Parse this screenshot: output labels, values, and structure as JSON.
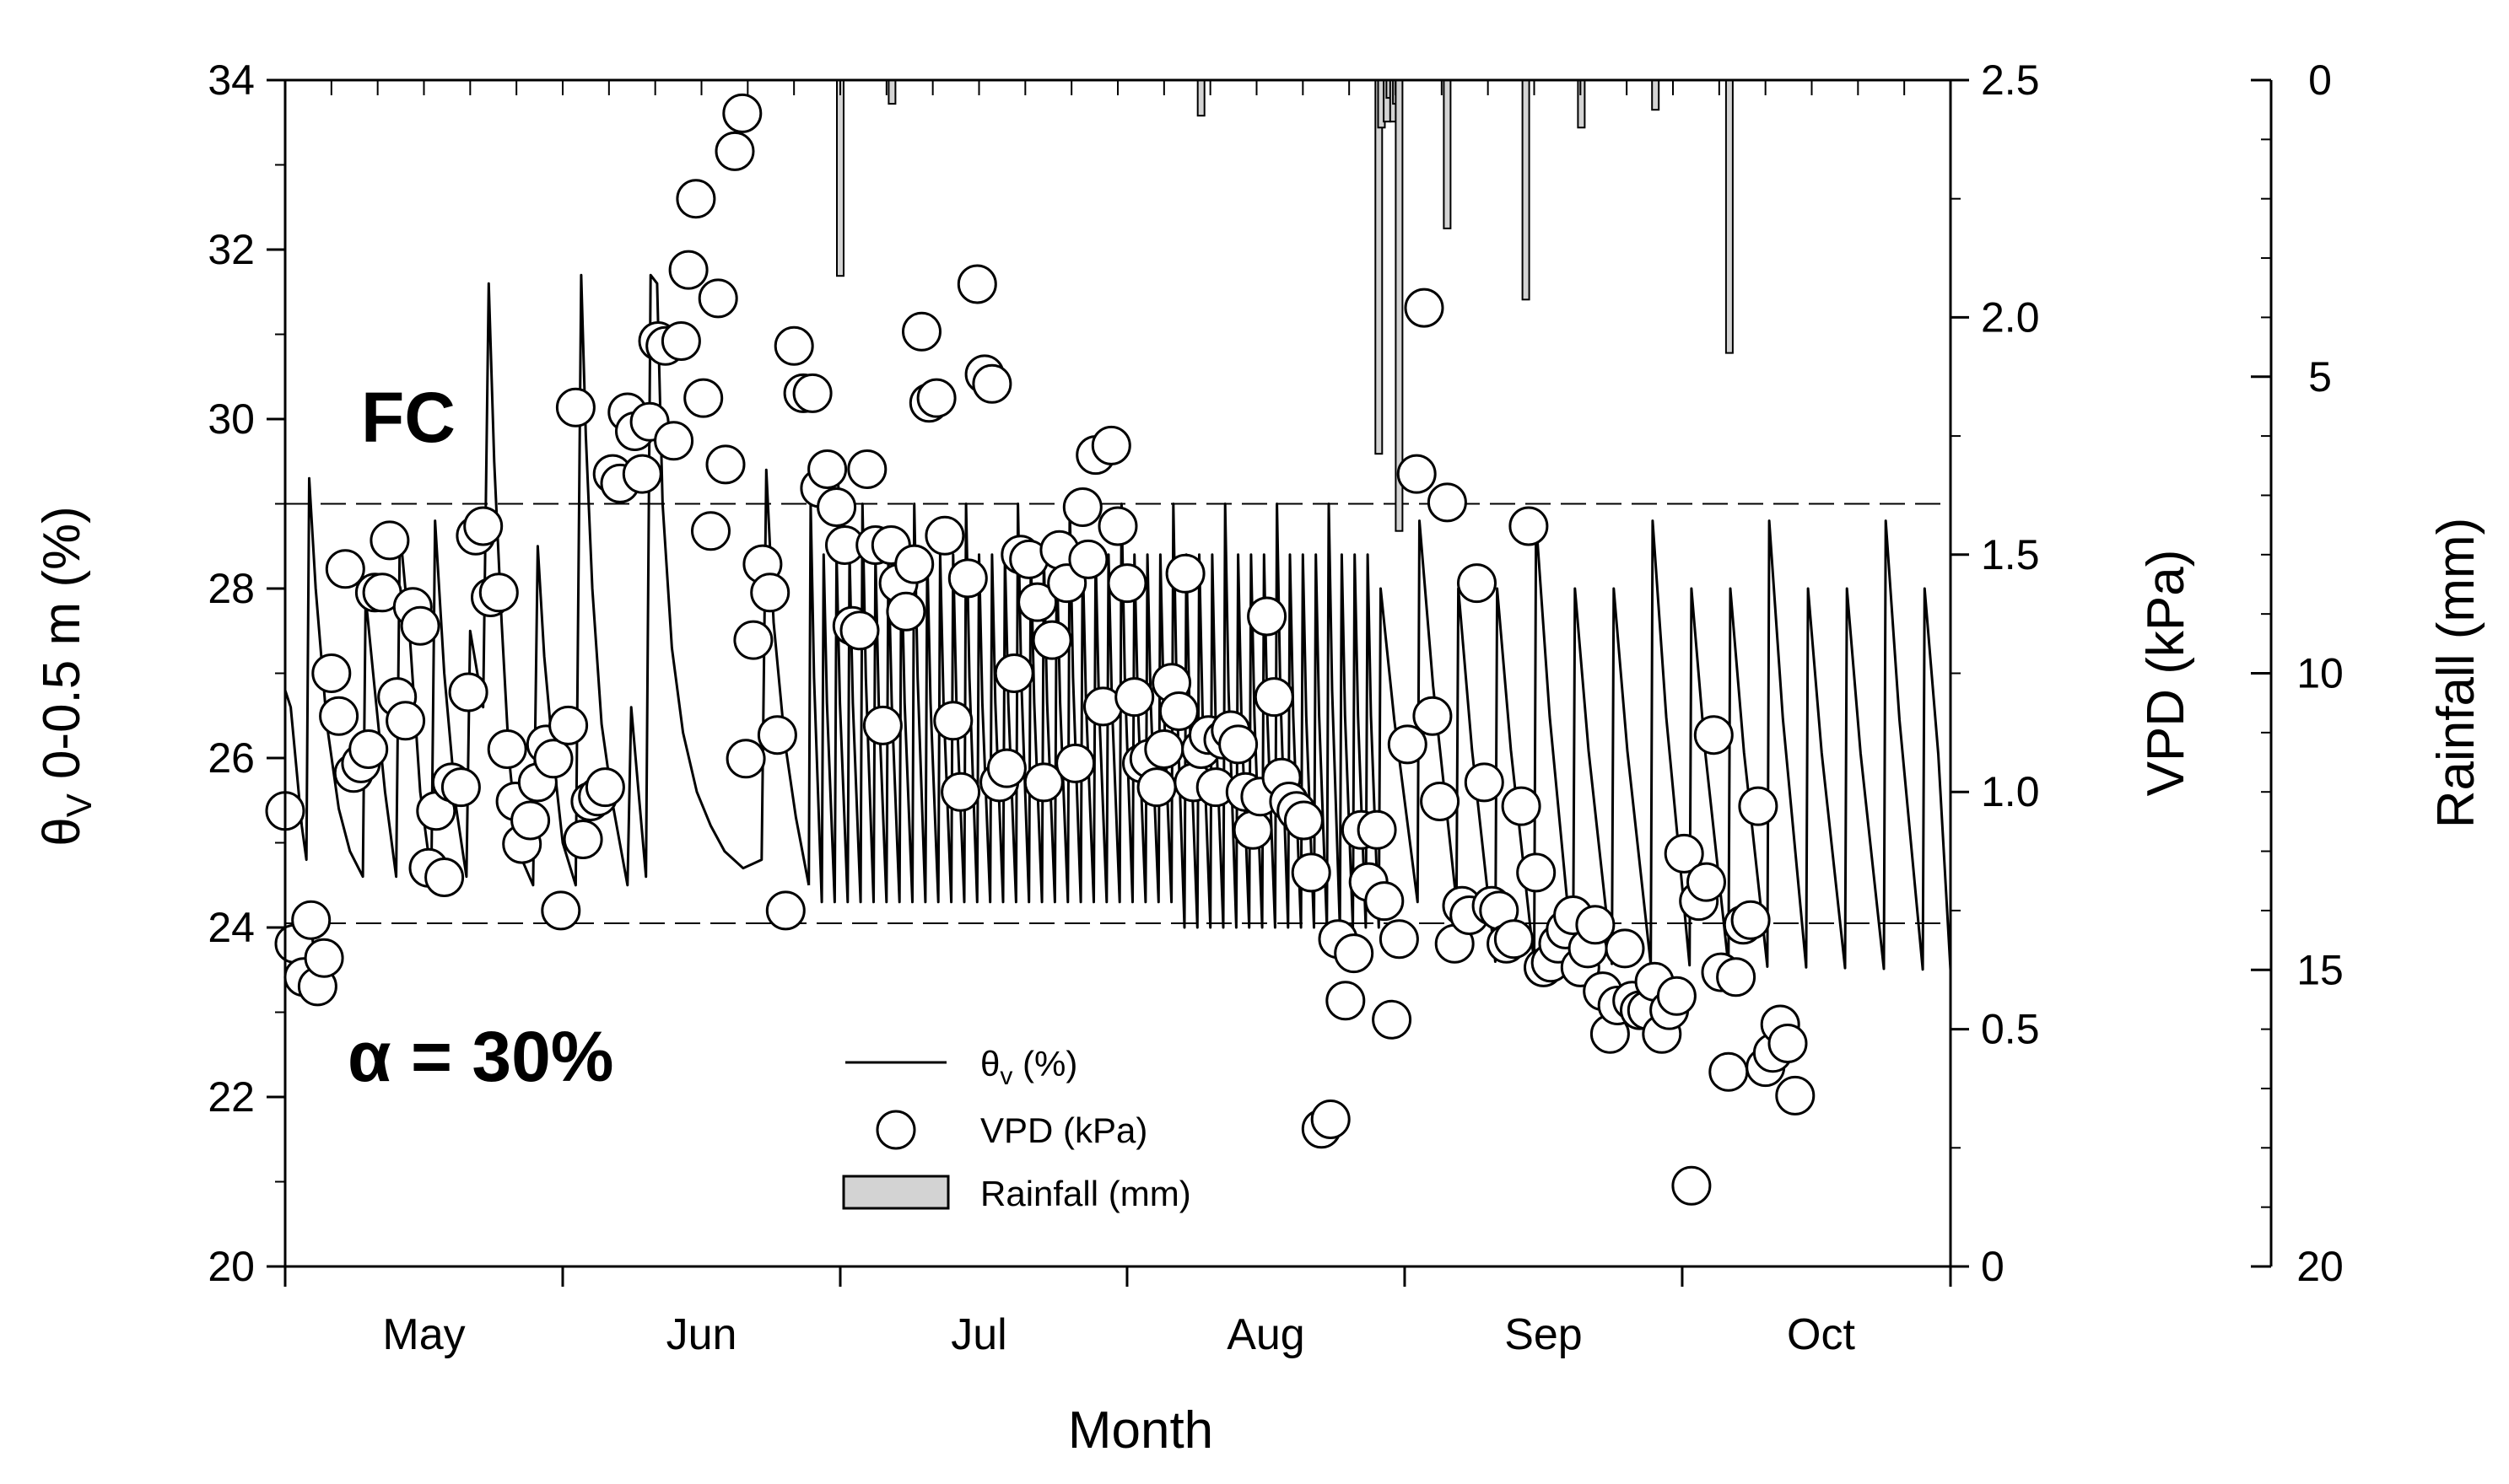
{
  "chart_data": {
    "type": "line",
    "title": "",
    "xlabel": "Month",
    "ylabel_left": "θv 0-0.5 m (%)",
    "ylabel_left_main": "θ",
    "ylabel_left_sub": "V",
    "ylabel_left_rest": " 0-0.5 m (%)",
    "ylabel_right1": "VPD (kPa)",
    "ylabel_right2": "Rainfall (mm)",
    "x_range_days": [
      0,
      180
    ],
    "ylim_left": [
      20,
      34
    ],
    "ylim_right1": [
      0,
      2.5
    ],
    "ylim_right2": [
      20,
      0
    ],
    "left_ticks": [
      "20",
      "22",
      "24",
      "26",
      "28",
      "30",
      "32",
      "34"
    ],
    "right1_ticks": [
      "0",
      "0.5",
      "1.0",
      "1.5",
      "2.0",
      "2.5"
    ],
    "right2_ticks": [
      "0",
      "5",
      "10",
      "15",
      "20"
    ],
    "month_boundaries_days": [
      0,
      30,
      60,
      91,
      121,
      151,
      180
    ],
    "months": [
      {
        "label": "May",
        "center_day": 15
      },
      {
        "label": "Jun",
        "center_day": 45
      },
      {
        "label": "Jul",
        "center_day": 75
      },
      {
        "label": "Aug",
        "center_day": 106
      },
      {
        "label": "Sep",
        "center_day": 136
      },
      {
        "label": "Oct",
        "center_day": 166
      }
    ],
    "reference_lines": [
      {
        "name": "field-capacity",
        "label": "FC",
        "value": 29.0
      },
      {
        "name": "refill-point",
        "label": "",
        "value": 24.05
      }
    ],
    "annotations": {
      "fc": "FC",
      "alpha": "α = 30%"
    },
    "legend": {
      "theta": "θv (%)",
      "theta_main": "θ",
      "theta_sub": "v",
      "theta_rest": " (%)",
      "vpd": "VPD (kPa)",
      "rain": "Rainfall (mm)"
    },
    "series": [
      {
        "name": "θv (%)",
        "type": "line",
        "axis": "left",
        "points": [
          [
            0.0,
            26.8
          ],
          [
            0.6,
            26.6
          ],
          [
            1.2,
            25.9
          ],
          [
            1.8,
            25.2
          ],
          [
            2.3,
            24.8
          ],
          [
            2.6,
            29.3
          ],
          [
            3.3,
            28.0
          ],
          [
            4.5,
            26.4
          ],
          [
            5.8,
            25.4
          ],
          [
            7.0,
            24.9
          ],
          [
            8.4,
            24.6
          ],
          [
            8.7,
            27.9
          ],
          [
            9.6,
            26.9
          ],
          [
            10.8,
            25.6
          ],
          [
            12.0,
            24.6
          ],
          [
            12.4,
            28.7
          ],
          [
            13.5,
            27.4
          ],
          [
            14.6,
            25.6
          ],
          [
            15.8,
            24.6
          ],
          [
            16.2,
            28.8
          ],
          [
            17.2,
            27.0
          ],
          [
            18.5,
            25.4
          ],
          [
            19.6,
            24.6
          ],
          [
            20.0,
            27.5
          ],
          [
            21.4,
            26.6
          ],
          [
            22.0,
            31.6
          ],
          [
            22.6,
            29.5
          ],
          [
            23.4,
            27.6
          ],
          [
            24.2,
            26.0
          ],
          [
            25.2,
            24.9
          ],
          [
            26.8,
            24.5
          ],
          [
            27.3,
            28.5
          ],
          [
            28.0,
            27.2
          ],
          [
            29.0,
            26.0
          ],
          [
            30.0,
            25.0
          ],
          [
            31.4,
            24.5
          ],
          [
            32.0,
            31.7
          ],
          [
            32.5,
            29.8
          ],
          [
            33.2,
            28.0
          ],
          [
            34.2,
            26.4
          ],
          [
            35.5,
            25.4
          ],
          [
            37.0,
            24.5
          ],
          [
            37.4,
            26.6
          ],
          [
            38.2,
            25.6
          ],
          [
            39.0,
            24.6
          ],
          [
            39.5,
            31.7
          ],
          [
            40.2,
            31.6
          ],
          [
            40.8,
            29.0
          ],
          [
            41.8,
            27.3
          ],
          [
            43.0,
            26.3
          ],
          [
            44.5,
            25.6
          ],
          [
            46.0,
            25.2
          ],
          [
            47.5,
            24.9
          ],
          [
            49.5,
            24.7
          ],
          [
            51.5,
            24.8
          ],
          [
            52.0,
            29.4
          ],
          [
            52.8,
            27.6
          ],
          [
            54.0,
            26.2
          ],
          [
            55.2,
            25.3
          ],
          [
            56.6,
            24.5
          ]
        ]
      },
      {
        "name": "VPD (kPa)",
        "type": "scatter",
        "axis": "right1",
        "points": [
          [
            0,
            0.96
          ],
          [
            1,
            0.68
          ],
          [
            2,
            0.61
          ],
          [
            2.8,
            0.73
          ],
          [
            3.5,
            0.59
          ],
          [
            4.2,
            0.65
          ],
          [
            5,
            1.25
          ],
          [
            5.8,
            1.16
          ],
          [
            6.5,
            1.47
          ],
          [
            7.4,
            1.04
          ],
          [
            8.2,
            1.06
          ],
          [
            9,
            1.09
          ],
          [
            9.7,
            1.42
          ],
          [
            10.5,
            1.42
          ],
          [
            11.3,
            1.53
          ],
          [
            12.1,
            1.2
          ],
          [
            13,
            1.15
          ],
          [
            13.8,
            1.39
          ],
          [
            14.6,
            1.35
          ],
          [
            15.5,
            0.84
          ],
          [
            16.3,
            0.96
          ],
          [
            17.2,
            0.82
          ],
          [
            18,
            1.02
          ],
          [
            19,
            1.01
          ],
          [
            19.8,
            1.21
          ],
          [
            20.6,
            1.54
          ],
          [
            21.4,
            1.56
          ],
          [
            22.2,
            1.41
          ],
          [
            23.1,
            1.42
          ],
          [
            24,
            1.09
          ],
          [
            24.9,
            0.98
          ],
          [
            25.6,
            0.89
          ],
          [
            26.5,
            0.94
          ],
          [
            27.3,
            1.02
          ],
          [
            28.2,
            1.1
          ],
          [
            29,
            1.07
          ],
          [
            29.8,
            0.75
          ],
          [
            30.6,
            1.14
          ],
          [
            31.4,
            1.81
          ],
          [
            32.2,
            0.9
          ],
          [
            33.0,
            0.98
          ],
          [
            33.8,
            0.99
          ],
          [
            34.6,
            1.01
          ],
          [
            35.4,
            1.67
          ],
          [
            36.2,
            1.65
          ],
          [
            37.0,
            1.8
          ],
          [
            37.8,
            1.76
          ],
          [
            38.6,
            1.67
          ],
          [
            39.4,
            1.78
          ],
          [
            40.3,
            1.95
          ],
          [
            41.1,
            1.94
          ],
          [
            42,
            1.74
          ],
          [
            42.8,
            1.95
          ],
          [
            43.6,
            2.1
          ],
          [
            44.4,
            2.25
          ],
          [
            45.2,
            1.83
          ],
          [
            46,
            1.55
          ],
          [
            46.8,
            2.04
          ],
          [
            47.6,
            1.69
          ],
          [
            48.6,
            2.35
          ],
          [
            49.4,
            2.43
          ],
          [
            49.8,
            1.07
          ],
          [
            50.6,
            1.32
          ],
          [
            51.6,
            1.48
          ],
          [
            52.4,
            1.42
          ],
          [
            53.2,
            1.12
          ],
          [
            54.1,
            0.75
          ],
          [
            55,
            1.94
          ],
          [
            56,
            1.84
          ],
          [
            57,
            1.84
          ],
          [
            57.8,
            1.64
          ],
          [
            58.6,
            1.68
          ],
          [
            59.6,
            1.6
          ],
          [
            60.5,
            1.52
          ],
          [
            61.3,
            1.35
          ],
          [
            62.1,
            1.34
          ],
          [
            62.9,
            1.68
          ],
          [
            63.8,
            1.52
          ],
          [
            64.6,
            1.14
          ],
          [
            65.5,
            1.52
          ],
          [
            66.3,
            1.44
          ],
          [
            67.1,
            1.38
          ],
          [
            68,
            1.48
          ],
          [
            68.8,
            1.97
          ],
          [
            69.6,
            1.82
          ],
          [
            70.4,
            1.83
          ],
          [
            71.3,
            1.54
          ],
          [
            72.2,
            1.15
          ],
          [
            73.0,
            1.0
          ],
          [
            73.8,
            1.45
          ],
          [
            74.8,
            2.07
          ],
          [
            75.6,
            1.88
          ],
          [
            76.4,
            1.86
          ],
          [
            77.2,
            1.02
          ],
          [
            78,
            1.05
          ],
          [
            78.8,
            1.25
          ],
          [
            79.5,
            1.5
          ],
          [
            80.4,
            1.49
          ],
          [
            81.3,
            1.4
          ],
          [
            82,
            1.02
          ],
          [
            82.9,
            1.32
          ],
          [
            83.7,
            1.51
          ],
          [
            84.5,
            1.44
          ],
          [
            85.4,
            1.06
          ],
          [
            86.2,
            1.6
          ],
          [
            86.8,
            1.49
          ],
          [
            87.6,
            1.71
          ],
          [
            88.4,
            1.18
          ],
          [
            89.3,
            1.73
          ],
          [
            90,
            1.56
          ],
          [
            91,
            1.44
          ],
          [
            91.8,
            1.2
          ],
          [
            92.6,
            1.06
          ],
          [
            93.4,
            1.07
          ],
          [
            94.2,
            1.01
          ],
          [
            95,
            1.09
          ],
          [
            95.8,
            1.23
          ],
          [
            96.6,
            1.17
          ],
          [
            97.3,
            1.46
          ],
          [
            98.2,
            1.02
          ],
          [
            99,
            1.09
          ],
          [
            99.8,
            1.12
          ],
          [
            100.6,
            1.01
          ],
          [
            101.4,
            1.11
          ],
          [
            102.2,
            1.13
          ],
          [
            103,
            1.1
          ],
          [
            103.8,
            1.0
          ],
          [
            104.6,
            0.92
          ],
          [
            105.4,
            0.99
          ],
          [
            106.1,
            1.37
          ],
          [
            106.9,
            1.2
          ],
          [
            107.7,
            1.03
          ],
          [
            108.5,
            0.98
          ],
          [
            109.3,
            0.96
          ],
          [
            110.1,
            0.94
          ],
          [
            110.9,
            0.83
          ],
          [
            112,
            0.29
          ],
          [
            113,
            0.31
          ],
          [
            113.8,
            0.69
          ],
          [
            114.6,
            0.56
          ],
          [
            115.5,
            0.66
          ],
          [
            116.3,
            0.92
          ],
          [
            117.1,
            0.81
          ],
          [
            118,
            0.92
          ],
          [
            118.8,
            0.77
          ],
          [
            119.6,
            0.52
          ],
          [
            120.4,
            0.69
          ],
          [
            121.3,
            1.1
          ],
          [
            122.3,
            1.67
          ],
          [
            123.1,
            2.02
          ],
          [
            124,
            1.16
          ],
          [
            124.8,
            0.98
          ],
          [
            125.6,
            1.61
          ],
          [
            126.4,
            0.68
          ],
          [
            127.2,
            0.76
          ],
          [
            128,
            0.74
          ],
          [
            128.8,
            1.44
          ],
          [
            129.6,
            1.02
          ],
          [
            130.4,
            0.76
          ],
          [
            131.2,
            0.75
          ],
          [
            132,
            0.68
          ],
          [
            132.8,
            0.69
          ],
          [
            133.6,
            0.97
          ],
          [
            134.4,
            1.56
          ],
          [
            135.2,
            0.83
          ],
          [
            136,
            0.63
          ],
          [
            136.8,
            0.64
          ],
          [
            137.6,
            0.68
          ],
          [
            138.4,
            0.71
          ],
          [
            139.2,
            0.74
          ],
          [
            140,
            0.63
          ],
          [
            140.8,
            0.67
          ],
          [
            141.6,
            0.72
          ],
          [
            142.4,
            0.58
          ],
          [
            143.2,
            0.49
          ],
          [
            144,
            0.55
          ],
          [
            144.8,
            0.67
          ],
          [
            145.6,
            0.56
          ],
          [
            146.4,
            0.54
          ],
          [
            147.2,
            0.54
          ],
          [
            148,
            0.6
          ],
          [
            148.8,
            0.49
          ],
          [
            149.6,
            0.54
          ],
          [
            150.4,
            0.57
          ],
          [
            151.2,
            0.87
          ],
          [
            152,
            0.17
          ],
          [
            152.8,
            0.77
          ],
          [
            153.6,
            0.81
          ],
          [
            154.4,
            1.12
          ],
          [
            155.2,
            0.62
          ],
          [
            156,
            0.41
          ],
          [
            156.8,
            0.61
          ],
          [
            157.6,
            0.72
          ],
          [
            158.4,
            0.73
          ],
          [
            159.2,
            0.97
          ],
          [
            160,
            0.42
          ],
          [
            160.8,
            0.45
          ],
          [
            161.6,
            0.51
          ],
          [
            162.4,
            0.47
          ],
          [
            163.2,
            0.36
          ]
        ]
      },
      {
        "name": "Rainfall (mm)",
        "type": "bar",
        "axis": "right2",
        "bars": [
          [
            60,
            3.3
          ],
          [
            65.6,
            0.4
          ],
          [
            99,
            0.6
          ],
          [
            118.2,
            6.3
          ],
          [
            118.5,
            0.8
          ],
          [
            119.1,
            0.7
          ],
          [
            119.4,
            0.3
          ],
          [
            119.8,
            0.7
          ],
          [
            120.1,
            0.4
          ],
          [
            120.4,
            7.6
          ],
          [
            125.6,
            2.5
          ],
          [
            134.1,
            3.7
          ],
          [
            140.1,
            0.8
          ],
          [
            148.1,
            0.5
          ],
          [
            156.1,
            4.6
          ]
        ]
      }
    ]
  }
}
